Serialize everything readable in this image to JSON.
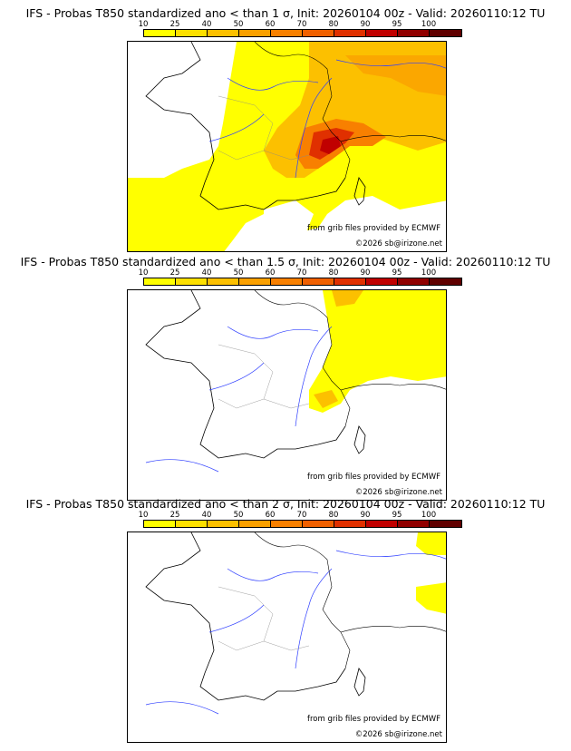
{
  "colorbar": {
    "levels": [
      "10",
      "25",
      "40",
      "50",
      "60",
      "70",
      "80",
      "90",
      "95",
      "100"
    ],
    "colors": [
      "#ffff00",
      "#fde000",
      "#fcc000",
      "#faa000",
      "#f88000",
      "#f06000",
      "#e03000",
      "#c00000",
      "#900000",
      "#600000"
    ]
  },
  "panels": [
    {
      "title": "IFS - Probas T850  standardized ano < than 1 σ, Init: 20260104 00z - Valid: 20260110:12 TU",
      "source_credit": "from grib files provided by ECMWF",
      "copyright": "©2026 sb@irizone.net"
    },
    {
      "title": "IFS - Probas T850  standardized ano < than 1.5 σ, Init: 20260104 00z - Valid: 20260110:12 TU",
      "source_credit": "from grib files provided by ECMWF",
      "copyright": "©2026 sb@irizone.net"
    },
    {
      "title": "IFS - Probas T850  standardized ano < than 2 σ, Init: 20260104 00z - Valid: 20260110:12 TU",
      "source_credit": "from grib files provided by ECMWF",
      "copyright": "©2026 sb@irizone.net"
    }
  ]
}
